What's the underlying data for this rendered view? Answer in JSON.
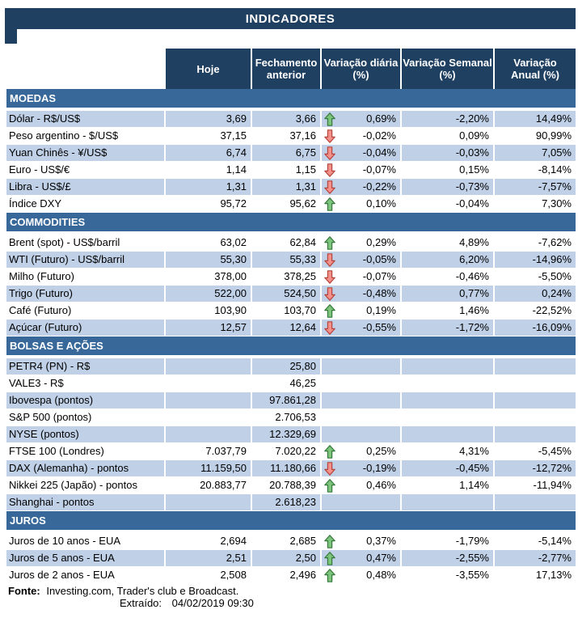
{
  "title": "INDICADORES",
  "colors": {
    "header_navy": "#204061",
    "section_blue": "#38689A",
    "row_shaded": "#BFD0E7",
    "arrow_up_fill": "#7CC47C",
    "arrow_up_stroke": "#35793B",
    "arrow_down_fill": "#F29089",
    "arrow_down_stroke": "#B5443C"
  },
  "table": {
    "columns": [
      {
        "id": "hoje",
        "label": "Hoje",
        "lines": [
          "Hoje"
        ]
      },
      {
        "id": "fechamento",
        "label": "Fechamento anterior",
        "lines": [
          "Fechamento",
          "anterior"
        ]
      },
      {
        "id": "var-diaria",
        "label": "Variação diária (%)",
        "lines": [
          "Variação diária",
          "(%)"
        ]
      },
      {
        "id": "var-semanal",
        "label": "Variação Semanal (%)",
        "lines": [
          "Variação Semanal",
          "(%)"
        ]
      },
      {
        "id": "var-anual",
        "label": "Variação Anual (%)",
        "lines": [
          "Variação",
          "Anual (%)"
        ]
      }
    ],
    "sections": [
      {
        "id": "moedas",
        "name": "MOEDAS",
        "rows": [
          {
            "label": "Dólar - R$/US$",
            "hoje": "3,69",
            "fechamento": "3,66",
            "arrow": "up",
            "var_diaria": "0,69%",
            "var_semanal": "-2,20%",
            "var_anual": "14,49%",
            "shaded": true
          },
          {
            "label": "Peso argentino - $/US$",
            "hoje": "37,15",
            "fechamento": "37,16",
            "arrow": "down",
            "var_diaria": "-0,02%",
            "var_semanal": "0,09%",
            "var_anual": "90,99%",
            "shaded": false
          },
          {
            "label": "Yuan Chinês - ¥/US$",
            "hoje": "6,74",
            "fechamento": "6,75",
            "arrow": "down",
            "var_diaria": "-0,04%",
            "var_semanal": "-0,03%",
            "var_anual": "7,05%",
            "shaded": true
          },
          {
            "label": "Euro - US$/€",
            "hoje": "1,14",
            "fechamento": "1,15",
            "arrow": "down",
            "var_diaria": "-0,07%",
            "var_semanal": "0,15%",
            "var_anual": "-8,14%",
            "shaded": false
          },
          {
            "label": "Libra - US$/£",
            "hoje": "1,31",
            "fechamento": "1,31",
            "arrow": "down",
            "var_diaria": "-0,22%",
            "var_semanal": "-0,73%",
            "var_anual": "-7,57%",
            "shaded": true
          },
          {
            "label": "Índice DXY",
            "hoje": "95,72",
            "fechamento": "95,62",
            "arrow": "up",
            "var_diaria": "0,10%",
            "var_semanal": "-0,04%",
            "var_anual": "7,30%",
            "shaded": false
          }
        ]
      },
      {
        "id": "commodities",
        "name": "COMMODITIES",
        "rows": [
          {
            "label": "Brent (spot) - US$/barril",
            "hoje": "63,02",
            "fechamento": "62,84",
            "arrow": "up",
            "var_diaria": "0,29%",
            "var_semanal": "4,89%",
            "var_anual": "-7,62%",
            "shaded": false
          },
          {
            "label": "WTI (Futuro) - US$/barril",
            "hoje": "55,30",
            "fechamento": "55,33",
            "arrow": "down",
            "var_diaria": "-0,05%",
            "var_semanal": "6,20%",
            "var_anual": "-14,96%",
            "shaded": true
          },
          {
            "label": "Milho (Futuro)",
            "hoje": "378,00",
            "fechamento": "378,25",
            "arrow": "down",
            "var_diaria": "-0,07%",
            "var_semanal": "-0,46%",
            "var_anual": "-5,50%",
            "shaded": false
          },
          {
            "label": "Trigo (Futuro)",
            "hoje": "522,00",
            "fechamento": "524,50",
            "arrow": "down",
            "var_diaria": "-0,48%",
            "var_semanal": "0,77%",
            "var_anual": "0,24%",
            "shaded": true
          },
          {
            "label": "Café (Futuro)",
            "hoje": "103,90",
            "fechamento": "103,70",
            "arrow": "up",
            "var_diaria": "0,19%",
            "var_semanal": "1,46%",
            "var_anual": "-22,52%",
            "shaded": false
          },
          {
            "label": "Açúcar (Futuro)",
            "hoje": "12,57",
            "fechamento": "12,64",
            "arrow": "down",
            "var_diaria": "-0,55%",
            "var_semanal": "-1,72%",
            "var_anual": "-16,09%",
            "shaded": true
          }
        ]
      },
      {
        "id": "bolsas-e-acoes",
        "name": "BOLSAS E AÇÕES",
        "rows": [
          {
            "label": "PETR4 (PN) - R$",
            "hoje": "",
            "fechamento": "25,80",
            "arrow": null,
            "var_diaria": "",
            "var_semanal": "",
            "var_anual": "",
            "shaded": true
          },
          {
            "label": "VALE3 - R$",
            "hoje": "",
            "fechamento": "46,25",
            "arrow": null,
            "var_diaria": "",
            "var_semanal": "",
            "var_anual": "",
            "shaded": false
          },
          {
            "label": "Ibovespa (pontos)",
            "hoje": "",
            "fechamento": "97.861,28",
            "arrow": null,
            "var_diaria": "",
            "var_semanal": "",
            "var_anual": "",
            "shaded": true
          },
          {
            "label": "S&P 500 (pontos)",
            "hoje": "",
            "fechamento": "2.706,53",
            "arrow": null,
            "var_diaria": "",
            "var_semanal": "",
            "var_anual": "",
            "shaded": false
          },
          {
            "label": "NYSE (pontos)",
            "hoje": "",
            "fechamento": "12.329,69",
            "arrow": null,
            "var_diaria": "",
            "var_semanal": "",
            "var_anual": "",
            "shaded": true
          },
          {
            "label": "FTSE 100 (Londres)",
            "hoje": "7.037,79",
            "fechamento": "7.020,22",
            "arrow": "up",
            "var_diaria": "0,25%",
            "var_semanal": "4,31%",
            "var_anual": "-5,45%",
            "shaded": false
          },
          {
            "label": "DAX (Alemanha) - pontos",
            "hoje": "11.159,50",
            "fechamento": "11.180,66",
            "arrow": "down",
            "var_diaria": "-0,19%",
            "var_semanal": "-0,45%",
            "var_anual": "-12,72%",
            "shaded": true
          },
          {
            "label": "Nikkei 225 (Japão) - pontos",
            "hoje": "20.883,77",
            "fechamento": "20.788,39",
            "arrow": "up",
            "var_diaria": "0,46%",
            "var_semanal": "1,14%",
            "var_anual": "-11,94%",
            "shaded": false
          },
          {
            "label": "Shanghai - pontos",
            "hoje": "",
            "fechamento": "2.618,23",
            "arrow": null,
            "var_diaria": "",
            "var_semanal": "",
            "var_anual": "",
            "shaded": true
          }
        ]
      },
      {
        "id": "juros",
        "name": "JUROS",
        "rows": [
          {
            "label": "Juros de 10 anos - EUA",
            "hoje": "2,694",
            "fechamento": "2,685",
            "arrow": "up",
            "var_diaria": "0,37%",
            "var_semanal": "-1,79%",
            "var_anual": "-5,14%",
            "shaded": false
          },
          {
            "label": "Juros de 5 anos - EUA",
            "hoje": "2,51",
            "fechamento": "2,50",
            "arrow": "up",
            "var_diaria": "0,47%",
            "var_semanal": "-2,55%",
            "var_anual": "-2,77%",
            "shaded": true
          },
          {
            "label": "Juros de 2 anos - EUA",
            "hoje": "2,508",
            "fechamento": "2,496",
            "arrow": "up",
            "var_diaria": "0,48%",
            "var_semanal": "-3,55%",
            "var_anual": "17,13%",
            "shaded": false
          }
        ]
      }
    ]
  },
  "footer": {
    "fonte_label": "Fonte:",
    "fonte_text": "Investing.com, Trader's club e Broadcast.",
    "extraido_label": "Extraído:",
    "extraido_value": "04/02/2019 09:30"
  }
}
